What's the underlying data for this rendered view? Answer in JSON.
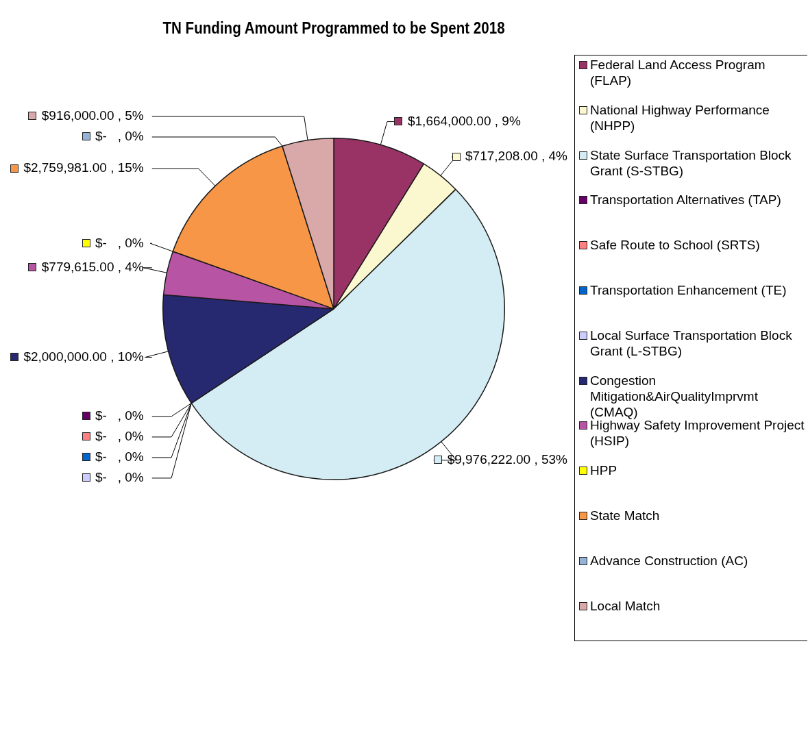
{
  "chart_data": {
    "type": "pie",
    "title": "TN Funding Amount Programmed to be Spent 2018",
    "categories": [
      "Federal Land Access Program (FLAP)",
      "National Highway Performance (NHPP)",
      "State Surface Transportation Block Grant (S-STBG)",
      "Transportation Alternatives (TAP)",
      "Safe Route to School (SRTS)",
      "Transportation Enhancement (TE)",
      "Local Surface Transportation Block Grant (L-STBG)",
      "Congestion Mitigation&AirQualityImprvmt (CMAQ)",
      "Highway Safety Improvement Project (HSIP)",
      "HPP",
      "State Match",
      "Advance Construction (AC)",
      "Local Match"
    ],
    "values": [
      1664000,
      717208,
      9976222,
      0,
      0,
      0,
      0,
      2000000,
      779615,
      0,
      2759981,
      0,
      916000
    ],
    "value_labels": [
      "$1,664,000.00 , 9%",
      "$717,208.00 , 4%",
      "$9,976,222.00 , 53%",
      "$-   , 0%",
      "$-   , 0%",
      "$-   , 0%",
      "$-   , 0%",
      "$2,000,000.00 , 10%",
      "$779,615.00 , 4%",
      "$-   , 0%",
      "$2,759,981.00 , 15%",
      "$-   , 0%",
      "$916,000.00 , 5%"
    ],
    "colors": [
      "#993366",
      "#fbf7cf",
      "#d4ecf4",
      "#660066",
      "#ff8080",
      "#0066cc",
      "#ccccff",
      "#262870",
      "#b854a4",
      "#ffff00",
      "#f79646",
      "#95b3d7",
      "#d9a9a9"
    ],
    "legend": "right"
  }
}
